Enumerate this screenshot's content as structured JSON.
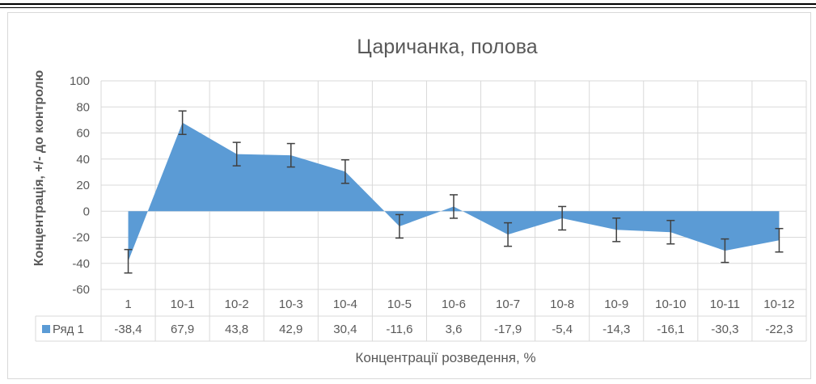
{
  "chart_data": {
    "type": "area",
    "title": "Царичанка, полова",
    "xlabel": "Концентрації розведення, %",
    "ylabel": "Концентрація, +/- до контролю",
    "ylim": [
      -60,
      100
    ],
    "yticks": [
      100,
      80,
      60,
      40,
      20,
      0,
      -20,
      -40,
      -60
    ],
    "grid": true,
    "categories": [
      "1",
      "10-1",
      "10-2",
      "10-3",
      "10-4",
      "10-5",
      "10-6",
      "10-7",
      "10-8",
      "10-9",
      "10-10",
      "10-11",
      "10-12"
    ],
    "series": [
      {
        "name": "Ряд 1",
        "values": [
          -38.4,
          67.9,
          43.8,
          42.9,
          30.4,
          -11.6,
          3.6,
          -17.9,
          -5.4,
          -14.3,
          -16.1,
          -30.3,
          -22.3
        ],
        "labels": [
          "-38,4",
          "67,9",
          "43,8",
          "42,9",
          "30,4",
          "-11,6",
          "3,6",
          "-17,9",
          "-5,4",
          "-14,3",
          "-16,1",
          "-30,3",
          "-22,3"
        ],
        "error": 9,
        "color": "#5b9bd5"
      }
    ],
    "data_table": true
  }
}
